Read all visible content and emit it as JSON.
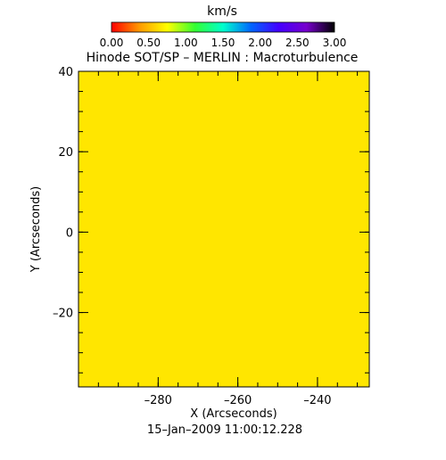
{
  "chart_data": {
    "type": "heatmap",
    "title": "Hinode SOT/SP – MERLIN : Macroturbulence",
    "xlabel": "X (Arcseconds)",
    "ylabel": "Y (Arcseconds)",
    "footer": "15–Jan–2009 11:00:12.228",
    "xlim": [
      -300,
      -227
    ],
    "ylim": [
      -38.5,
      40
    ],
    "x_ticks": [
      {
        "value": -280,
        "label": "–280"
      },
      {
        "value": -260,
        "label": "–260"
      },
      {
        "value": -240,
        "label": "–240"
      }
    ],
    "y_ticks": [
      {
        "value": 40,
        "label": "40"
      },
      {
        "value": 20,
        "label": "20"
      },
      {
        "value": 0,
        "label": "0"
      },
      {
        "value": -20,
        "label": "–20"
      }
    ],
    "x_minor_step": 5,
    "y_minor_step": 5,
    "field_value": 0.83,
    "field_color": "#ffe600",
    "colorbar": {
      "unit": "km/s",
      "range": [
        0,
        3
      ],
      "tick_labels": [
        "0.00",
        "0.50",
        "1.00",
        "1.50",
        "2.00",
        "2.50",
        "3.00"
      ],
      "colors": [
        "#ff0000",
        "#ff9900",
        "#ffff00",
        "#33ff33",
        "#00ffcc",
        "#0066ff",
        "#4400ff",
        "#7700cc",
        "#000000"
      ]
    }
  }
}
